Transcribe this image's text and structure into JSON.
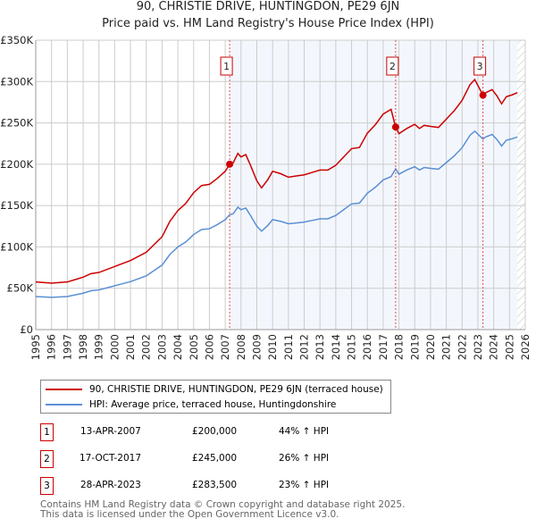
{
  "chart_data": {
    "type": "line",
    "title": "90, CHRISTIE DRIVE, HUNTINGDON, PE29 6JN",
    "subtitle": "Price paid vs. HM Land Registry's House Price Index (HPI)",
    "ylim": [
      0,
      350000
    ],
    "xlim": [
      1995,
      2026
    ],
    "yticks": [
      "£0",
      "£50K",
      "£100K",
      "£150K",
      "£200K",
      "£250K",
      "£300K",
      "£350K"
    ],
    "xticks": [
      "1995",
      "1996",
      "1997",
      "1998",
      "1999",
      "2000",
      "2001",
      "2002",
      "2003",
      "2004",
      "2005",
      "2006",
      "2007",
      "2008",
      "2009",
      "2010",
      "2011",
      "2012",
      "2013",
      "2014",
      "2015",
      "2016",
      "2017",
      "2018",
      "2019",
      "2020",
      "2021",
      "2022",
      "2023",
      "2024",
      "2025",
      "2026"
    ],
    "grid": true,
    "hpi": {
      "name": "HPI: Average price, terraced house, Huntingdonshire",
      "color": "#5b8fd4",
      "x": [
        1995,
        1996,
        1997,
        1997.5,
        1998,
        1998.5,
        1999,
        2000,
        2001,
        2002,
        2003,
        2003.5,
        2004,
        2004.5,
        2005,
        2005.5,
        2006,
        2006.5,
        2007,
        2007.28,
        2007.5,
        2007.8,
        2008,
        2008.3,
        2008.6,
        2009,
        2009.3,
        2009.7,
        2010,
        2010.5,
        2011,
        2011.5,
        2012,
        2012.5,
        2013,
        2013.5,
        2014,
        2014.5,
        2015,
        2015.5,
        2016,
        2016.5,
        2017,
        2017.5,
        2017.79,
        2018,
        2018.5,
        2019,
        2019.3,
        2019.6,
        2020,
        2020.5,
        2021,
        2021.5,
        2022,
        2022.5,
        2022.8,
        2023.32,
        2023.5,
        2023.9,
        2024.2,
        2024.5,
        2024.8,
        2025.2,
        2025.5
      ],
      "y": [
        40000,
        39000,
        40000,
        42000,
        44000,
        47000,
        48000,
        53000,
        58000,
        65000,
        78000,
        91000,
        100000,
        106000,
        115000,
        121000,
        122000,
        127000,
        133000,
        138900,
        140000,
        148000,
        145000,
        147000,
        138000,
        125000,
        119000,
        126000,
        133000,
        131000,
        128000,
        129000,
        130000,
        132000,
        134000,
        134000,
        138000,
        145000,
        152000,
        153000,
        165000,
        172000,
        181000,
        185000,
        194400,
        188000,
        193000,
        197000,
        193000,
        196000,
        195000,
        194000,
        202000,
        210000,
        220000,
        235000,
        240000,
        230500,
        233000,
        236000,
        230000,
        222000,
        229000,
        231000,
        233000
      ]
    },
    "property": {
      "name": "90, CHRISTIE DRIVE, HUNTINGDON, PE29 6JN (terraced house)",
      "color": "#cc0000"
    },
    "sales": [
      {
        "label": "1",
        "x": 2007.28,
        "date": "13-APR-2007",
        "price": 200000,
        "price_text": "£200,000",
        "hpi_text": "44% ↑ HPI"
      },
      {
        "label": "2",
        "x": 2017.79,
        "date": "17-OCT-2017",
        "price": 245000,
        "price_text": "£245,000",
        "hpi_text": "26% ↑ HPI"
      },
      {
        "label": "3",
        "x": 2023.32,
        "date": "28-APR-2023",
        "price": 283500,
        "price_text": "£283,500",
        "hpi_text": "23% ↑ HPI"
      }
    ],
    "data_end": 2025.5,
    "legend_position": "below"
  },
  "footer": [
    "Contains HM Land Registry data © Crown copyright and database right 2025.",
    "This data is licensed under the Open Government Licence v3.0."
  ]
}
